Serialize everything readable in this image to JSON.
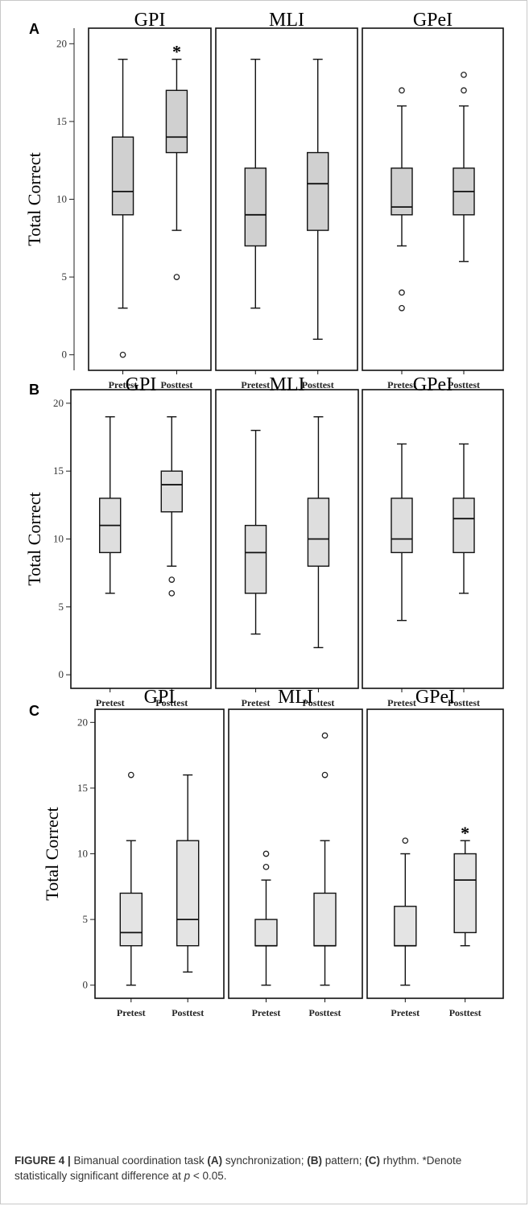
{
  "chart_data": [
    {
      "type": "box",
      "panel": "A",
      "ylabel": "Total Correct",
      "yticks": [
        0,
        5,
        10,
        15,
        20
      ],
      "ylim": [
        -1,
        21
      ],
      "categories": [
        "Pretest",
        "Posttest"
      ],
      "groups": [
        {
          "name": "GPI",
          "boxes": [
            {
              "category": "Pretest",
              "min": 3,
              "q1": 9,
              "median": 10.5,
              "q3": 14,
              "max": 19,
              "outliers": [
                0
              ],
              "star": false
            },
            {
              "category": "Posttest",
              "min": 8,
              "q1": 13,
              "median": 14,
              "q3": 17,
              "max": 19,
              "outliers": [
                5
              ],
              "star": true
            }
          ]
        },
        {
          "name": "MLI",
          "boxes": [
            {
              "category": "Pretest",
              "min": 3,
              "q1": 7,
              "median": 9,
              "q3": 12,
              "max": 19,
              "outliers": [],
              "star": false
            },
            {
              "category": "Posttest",
              "min": 1,
              "q1": 8,
              "median": 11,
              "q3": 13,
              "max": 19,
              "outliers": [],
              "star": false
            }
          ]
        },
        {
          "name": "GPeI",
          "boxes": [
            {
              "category": "Pretest",
              "min": 7,
              "q1": 9,
              "median": 9.5,
              "q3": 12,
              "max": 16,
              "outliers": [
                17,
                4,
                3
              ],
              "star": false
            },
            {
              "category": "Posttest",
              "min": 6,
              "q1": 9,
              "median": 10.5,
              "q3": 12,
              "max": 16,
              "outliers": [
                18,
                17
              ],
              "star": false
            }
          ]
        }
      ]
    },
    {
      "type": "box",
      "panel": "B",
      "ylabel": "Total Correct",
      "yticks": [
        0,
        5,
        10,
        15,
        20
      ],
      "ylim": [
        -1,
        21
      ],
      "categories": [
        "Pretest",
        "Posttest"
      ],
      "groups": [
        {
          "name": "GPI",
          "boxes": [
            {
              "category": "Pretest",
              "min": 6,
              "q1": 9,
              "median": 11,
              "q3": 13,
              "max": 19,
              "outliers": [],
              "star": false
            },
            {
              "category": "Posttest",
              "min": 8,
              "q1": 12,
              "median": 14,
              "q3": 15,
              "max": 19,
              "outliers": [
                7,
                6
              ],
              "star": false
            }
          ]
        },
        {
          "name": "MLI",
          "boxes": [
            {
              "category": "Pretest",
              "min": 3,
              "q1": 6,
              "median": 9,
              "q3": 11,
              "max": 18,
              "outliers": [],
              "star": false
            },
            {
              "category": "Posttest",
              "min": 2,
              "q1": 8,
              "median": 10,
              "q3": 13,
              "max": 19,
              "outliers": [],
              "star": false
            }
          ]
        },
        {
          "name": "GPeI",
          "boxes": [
            {
              "category": "Pretest",
              "min": 4,
              "q1": 9,
              "median": 10,
              "q3": 13,
              "max": 17,
              "outliers": [],
              "star": false
            },
            {
              "category": "Posttest",
              "min": 6,
              "q1": 9,
              "median": 11.5,
              "q3": 13,
              "max": 17,
              "outliers": [],
              "star": false
            }
          ]
        }
      ]
    },
    {
      "type": "box",
      "panel": "C",
      "ylabel": "Total Correct",
      "yticks": [
        0,
        5,
        10,
        15,
        20
      ],
      "ylim": [
        -1,
        21
      ],
      "categories": [
        "Pretest",
        "Posttest"
      ],
      "groups": [
        {
          "name": "GPI",
          "boxes": [
            {
              "category": "Pretest",
              "min": 0,
              "q1": 3,
              "median": 4,
              "q3": 7,
              "max": 11,
              "outliers": [
                16
              ],
              "star": false
            },
            {
              "category": "Posttest",
              "min": 1,
              "q1": 3,
              "median": 5,
              "q3": 11,
              "max": 16,
              "outliers": [],
              "star": false
            }
          ]
        },
        {
          "name": "MLI",
          "boxes": [
            {
              "category": "Pretest",
              "min": 0,
              "q1": 3,
              "median": 3,
              "q3": 5,
              "max": 8,
              "outliers": [
                10,
                9
              ],
              "star": false
            },
            {
              "category": "Posttest",
              "min": 0,
              "q1": 3,
              "median": 3,
              "q3": 7,
              "max": 11,
              "outliers": [
                19,
                16
              ],
              "star": false
            }
          ]
        },
        {
          "name": "GPeI",
          "boxes": [
            {
              "category": "Pretest",
              "min": 0,
              "q1": 3,
              "median": 3,
              "q3": 6,
              "max": 10,
              "outliers": [
                11
              ],
              "star": false
            },
            {
              "category": "Posttest",
              "min": 3,
              "q1": 4,
              "median": 8,
              "q3": 10,
              "max": 11,
              "outliers": [],
              "star": true
            }
          ]
        }
      ]
    }
  ],
  "caption": {
    "label": "FIGURE 4 |",
    "text_1": " Bimanual coordination task ",
    "a": "(A)",
    "text_2": " synchronization; ",
    "b": "(B)",
    "text_3": " pattern; ",
    "c": "(C)",
    "text_4": " rhythm. *Denote statistically significant difference at ",
    "p": "p",
    "text_5": " < 0.05."
  }
}
